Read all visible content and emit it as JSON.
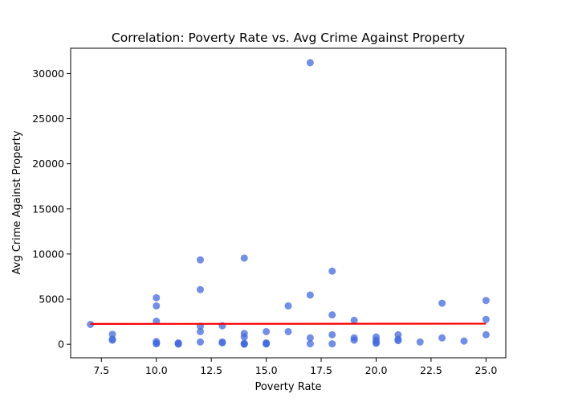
{
  "chart_data": {
    "type": "scatter",
    "title": "Correlation: Poverty Rate vs. Avg Crime Against Property",
    "xlabel": "Poverty Rate",
    "ylabel": "Avg Crime Against Property",
    "xlim": [
      6.1,
      25.9
    ],
    "ylim": [
      -1500,
      32800
    ],
    "xticks": [
      7.5,
      10.0,
      12.5,
      15.0,
      17.5,
      20.0,
      22.5,
      25.0
    ],
    "xtick_labels": [
      "7.5",
      "10.0",
      "12.5",
      "15.0",
      "17.5",
      "20.0",
      "22.5",
      "25.0"
    ],
    "yticks": [
      0,
      5000,
      10000,
      15000,
      20000,
      25000,
      30000
    ],
    "ytick_labels": [
      "0",
      "5000",
      "10000",
      "15000",
      "20000",
      "25000",
      "30000"
    ],
    "grid": false,
    "point_color": "#4169e1",
    "trend_color": "#ff0000",
    "points": [
      {
        "x": 7,
        "y": 2200
      },
      {
        "x": 8,
        "y": 1100
      },
      {
        "x": 8,
        "y": 550
      },
      {
        "x": 8,
        "y": 450
      },
      {
        "x": 10,
        "y": 5150
      },
      {
        "x": 10,
        "y": 4250
      },
      {
        "x": 10,
        "y": 2550
      },
      {
        "x": 10,
        "y": 300
      },
      {
        "x": 10,
        "y": 100
      },
      {
        "x": 10,
        "y": 50
      },
      {
        "x": 11,
        "y": 150
      },
      {
        "x": 11,
        "y": 80
      },
      {
        "x": 11,
        "y": 20
      },
      {
        "x": 12,
        "y": 9350
      },
      {
        "x": 12,
        "y": 6050
      },
      {
        "x": 12,
        "y": 2000
      },
      {
        "x": 12,
        "y": 1400
      },
      {
        "x": 12,
        "y": 250
      },
      {
        "x": 13,
        "y": 2050
      },
      {
        "x": 13,
        "y": 250
      },
      {
        "x": 13,
        "y": 150
      },
      {
        "x": 14,
        "y": 9550
      },
      {
        "x": 14,
        "y": 1200
      },
      {
        "x": 14,
        "y": 800
      },
      {
        "x": 14,
        "y": 100
      },
      {
        "x": 14,
        "y": 30
      },
      {
        "x": 14,
        "y": 10
      },
      {
        "x": 15,
        "y": 1400
      },
      {
        "x": 15,
        "y": 150
      },
      {
        "x": 15,
        "y": 80
      },
      {
        "x": 15,
        "y": 30
      },
      {
        "x": 16,
        "y": 4250
      },
      {
        "x": 16,
        "y": 1400
      },
      {
        "x": 17,
        "y": 31200
      },
      {
        "x": 17,
        "y": 5450
      },
      {
        "x": 17,
        "y": 700
      },
      {
        "x": 17,
        "y": 50
      },
      {
        "x": 18,
        "y": 8100
      },
      {
        "x": 18,
        "y": 3250
      },
      {
        "x": 18,
        "y": 1050
      },
      {
        "x": 18,
        "y": 50
      },
      {
        "x": 19,
        "y": 2650
      },
      {
        "x": 19,
        "y": 700
      },
      {
        "x": 19,
        "y": 450
      },
      {
        "x": 20,
        "y": 800
      },
      {
        "x": 20,
        "y": 450
      },
      {
        "x": 20,
        "y": 200
      },
      {
        "x": 20,
        "y": 100
      },
      {
        "x": 21,
        "y": 1050
      },
      {
        "x": 21,
        "y": 550
      },
      {
        "x": 21,
        "y": 400
      },
      {
        "x": 22,
        "y": 250
      },
      {
        "x": 23,
        "y": 4550
      },
      {
        "x": 23,
        "y": 700
      },
      {
        "x": 24,
        "y": 350
      },
      {
        "x": 25,
        "y": 4850
      },
      {
        "x": 25,
        "y": 2750
      },
      {
        "x": 25,
        "y": 1050
      }
    ],
    "trend_line": {
      "x": [
        7,
        25
      ],
      "y": [
        2250,
        2280
      ]
    }
  }
}
